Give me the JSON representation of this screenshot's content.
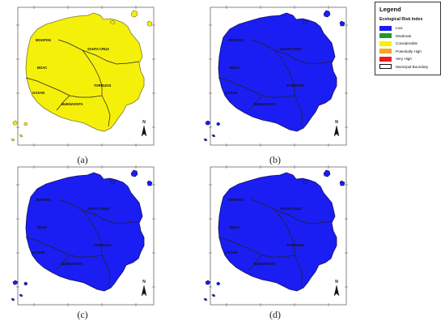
{
  "panels": [
    {
      "id": "a",
      "caption": "(a)",
      "fill": "#f5f00a",
      "stroke": "#7a7a20"
    },
    {
      "id": "b",
      "caption": "(b)",
      "fill": "#1a1ef2",
      "stroke": "#101060"
    },
    {
      "id": "c",
      "caption": "(c)",
      "fill": "#1a1ef2",
      "stroke": "#101060"
    },
    {
      "id": "d",
      "caption": "(d)",
      "fill": "#1a1ef2",
      "stroke": "#101060"
    }
  ],
  "municipalities": {
    "mogpog": "MOGPOG",
    "santa_cruz": "SANTA CRUZ",
    "boac": "BOAC",
    "torrijos": "TORRIJOS",
    "gasan": "GASAN",
    "buenavista": "BUENAVISTA"
  },
  "north_arrow_label": "N",
  "legend": {
    "title": "Legend",
    "subtitle": "Ecological Risk Index",
    "items": [
      {
        "label": "Low",
        "color": "#1a1ef2"
      },
      {
        "label": "Moderate",
        "color": "#1f9a2a"
      },
      {
        "label": "Considerable",
        "color": "#f5f00a"
      },
      {
        "label": "Potentially High",
        "color": "#f5a623"
      },
      {
        "label": "Very High",
        "color": "#ee1c1c"
      },
      {
        "label": "Municipal Boundary",
        "color": "#ffffff"
      }
    ]
  }
}
